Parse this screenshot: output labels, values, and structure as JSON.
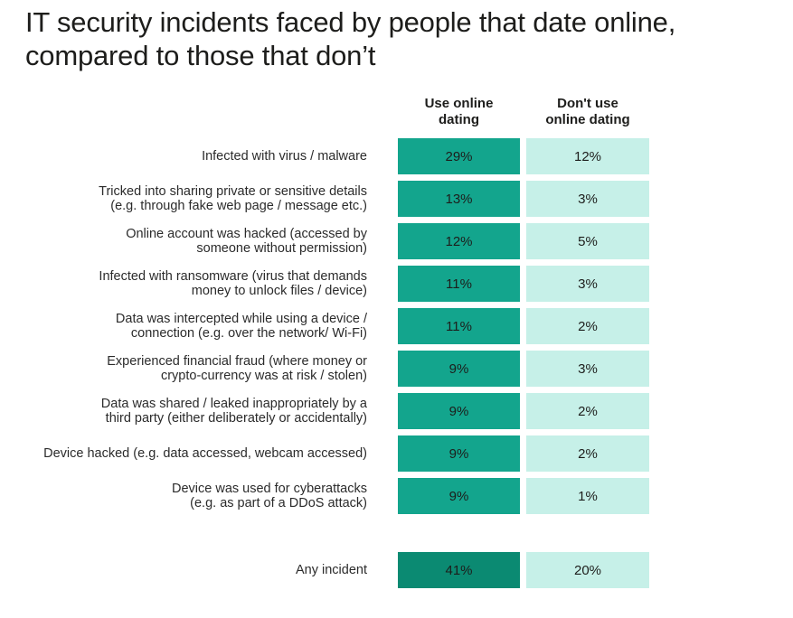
{
  "title_lines": [
    "IT security incidents faced by people that date online,",
    "compared to those that don’t"
  ],
  "columns": [
    {
      "lines": [
        "Use online",
        "dating"
      ]
    },
    {
      "lines": [
        "Don't use",
        "online dating"
      ]
    }
  ],
  "colors": {
    "use_cell": "#13a58d",
    "use_total_cell": "#0b8a72",
    "nonuse_cell": "#c6f0e8"
  },
  "chart_data": {
    "type": "table",
    "series": [
      {
        "name": "Use online dating",
        "values": [
          29,
          13,
          12,
          11,
          11,
          9,
          9,
          9,
          9,
          41
        ]
      },
      {
        "name": "Don't use online dating",
        "values": [
          12,
          3,
          5,
          3,
          2,
          3,
          2,
          2,
          1,
          20
        ]
      }
    ],
    "rows": [
      {
        "label_lines": [
          "Infected with virus / malware"
        ],
        "use": "29%",
        "nonuse": "12%"
      },
      {
        "label_lines": [
          "Tricked into sharing private or sensitive details",
          "(e.g. through fake web page / message etc.)"
        ],
        "use": "13%",
        "nonuse": "3%"
      },
      {
        "label_lines": [
          "Online account was hacked (accessed by",
          "someone without permission)"
        ],
        "use": "12%",
        "nonuse": "5%"
      },
      {
        "label_lines": [
          "Infected with ransomware (virus that demands",
          "money to unlock files / device)"
        ],
        "use": "11%",
        "nonuse": "3%"
      },
      {
        "label_lines": [
          "Data was intercepted while using a device /",
          "connection (e.g. over the network/ Wi-Fi)"
        ],
        "use": "11%",
        "nonuse": "2%"
      },
      {
        "label_lines": [
          "Experienced financial fraud (where money or",
          "crypto-currency was at risk / stolen)"
        ],
        "use": "9%",
        "nonuse": "3%"
      },
      {
        "label_lines": [
          "Data was shared / leaked inappropriately by a",
          "third party (either deliberately or accidentally)"
        ],
        "use": "9%",
        "nonuse": "2%"
      },
      {
        "label_lines": [
          "Device hacked (e.g. data accessed, webcam accessed)"
        ],
        "use": "9%",
        "nonuse": "2%"
      },
      {
        "label_lines": [
          "Device was used for cyberattacks",
          "(e.g. as part of a DDoS attack)"
        ],
        "use": "9%",
        "nonuse": "1%"
      },
      {
        "label_lines": [
          "Any incident"
        ],
        "use": "41%",
        "nonuse": "20%",
        "total": true
      }
    ]
  }
}
